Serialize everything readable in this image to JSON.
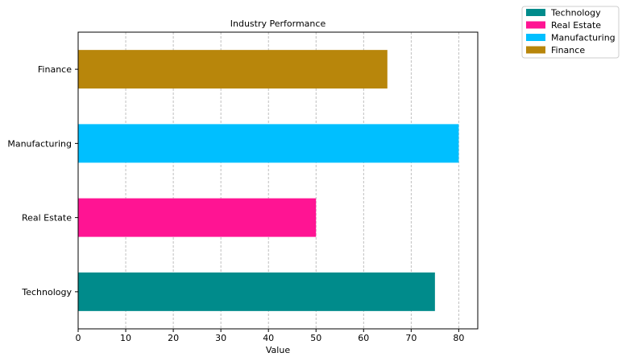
{
  "chart_data": {
    "type": "bar",
    "orientation": "horizontal",
    "title": "Industry Performance",
    "xlabel": "Value",
    "ylabel": "",
    "xlim": [
      0,
      84
    ],
    "xticks": [
      0,
      10,
      20,
      30,
      40,
      50,
      60,
      70,
      80
    ],
    "grid": "x-dashed",
    "legend_position": "outside-top-right",
    "categories": [
      "Technology",
      "Real Estate",
      "Manufacturing",
      "Finance"
    ],
    "values": [
      75,
      50,
      80,
      65
    ],
    "colors": [
      "#008b8b",
      "#ff1493",
      "#00bfff",
      "#b8860b"
    ]
  }
}
